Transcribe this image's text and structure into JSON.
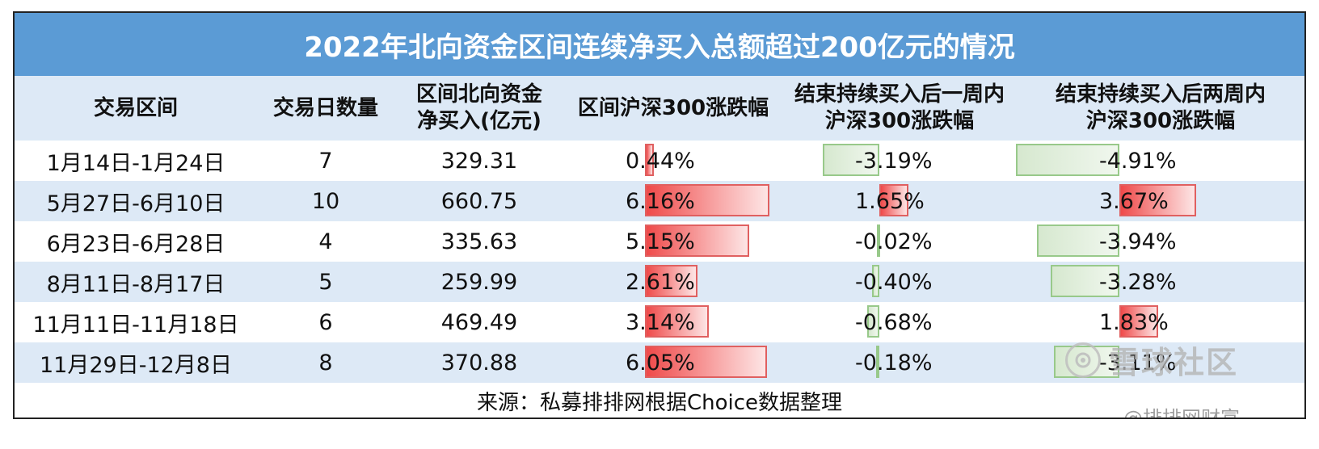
{
  "title": "2022年北向资金区间连续净买入总额超过200亿元的情况",
  "headers": {
    "range": [
      "交易区间"
    ],
    "days": [
      "交易日数量"
    ],
    "net_buy": [
      "区间北向资金",
      "净买入(亿元)"
    ],
    "hs300": [
      "区间沪深300涨跌幅"
    ],
    "week1": [
      "结束持续买入后一周内",
      "沪深300涨跌幅"
    ],
    "week2": [
      "结束持续买入后两周内",
      "沪深300涨跌幅"
    ]
  },
  "rows": [
    {
      "range": "1月14日-1月24日",
      "days": "7",
      "net_buy": "329.31",
      "hs300": "0.44%",
      "hs300_v": 0.44,
      "week1": "-3.19%",
      "week1_v": -3.19,
      "week2": "-4.91%",
      "week2_v": -4.91
    },
    {
      "range": "5月27日-6月10日",
      "days": "10",
      "net_buy": "660.75",
      "hs300": "6.16%",
      "hs300_v": 6.16,
      "week1": "1.65%",
      "week1_v": 1.65,
      "week2": "3.67%",
      "week2_v": 3.67
    },
    {
      "range": "6月23日-6月28日",
      "days": "4",
      "net_buy": "335.63",
      "hs300": "5.15%",
      "hs300_v": 5.15,
      "week1": "-0.02%",
      "week1_v": -0.02,
      "week2": "-3.94%",
      "week2_v": -3.94
    },
    {
      "range": "8月11日-8月17日",
      "days": "5",
      "net_buy": "259.99",
      "hs300": "2.61%",
      "hs300_v": 2.61,
      "week1": "-0.40%",
      "week1_v": -0.4,
      "week2": "-3.28%",
      "week2_v": -3.28
    },
    {
      "range": "11月11日-11月18日",
      "days": "6",
      "net_buy": "469.49",
      "hs300": "3.14%",
      "hs300_v": 3.14,
      "week1": "-0.68%",
      "week1_v": -0.68,
      "week2": "1.83%",
      "week2_v": 1.83
    },
    {
      "range": "11月29日-12月8日",
      "days": "8",
      "net_buy": "370.88",
      "hs300": "6.05%",
      "hs300_v": 6.05,
      "week1": "-0.18%",
      "week1_v": -0.18,
      "week2": "-3.11%",
      "week2_v": -3.11
    }
  ],
  "footer": "来源：私募排排网根据Choice数据整理",
  "watermark": {
    "main": "雪球社区",
    "sub": "@排排网财富"
  },
  "colors": {
    "title_bg": "#5b9bd5",
    "stripe": "#dde9f6",
    "pos_bar": "#ef4a4a",
    "neg_bar": "#98c98a"
  }
}
